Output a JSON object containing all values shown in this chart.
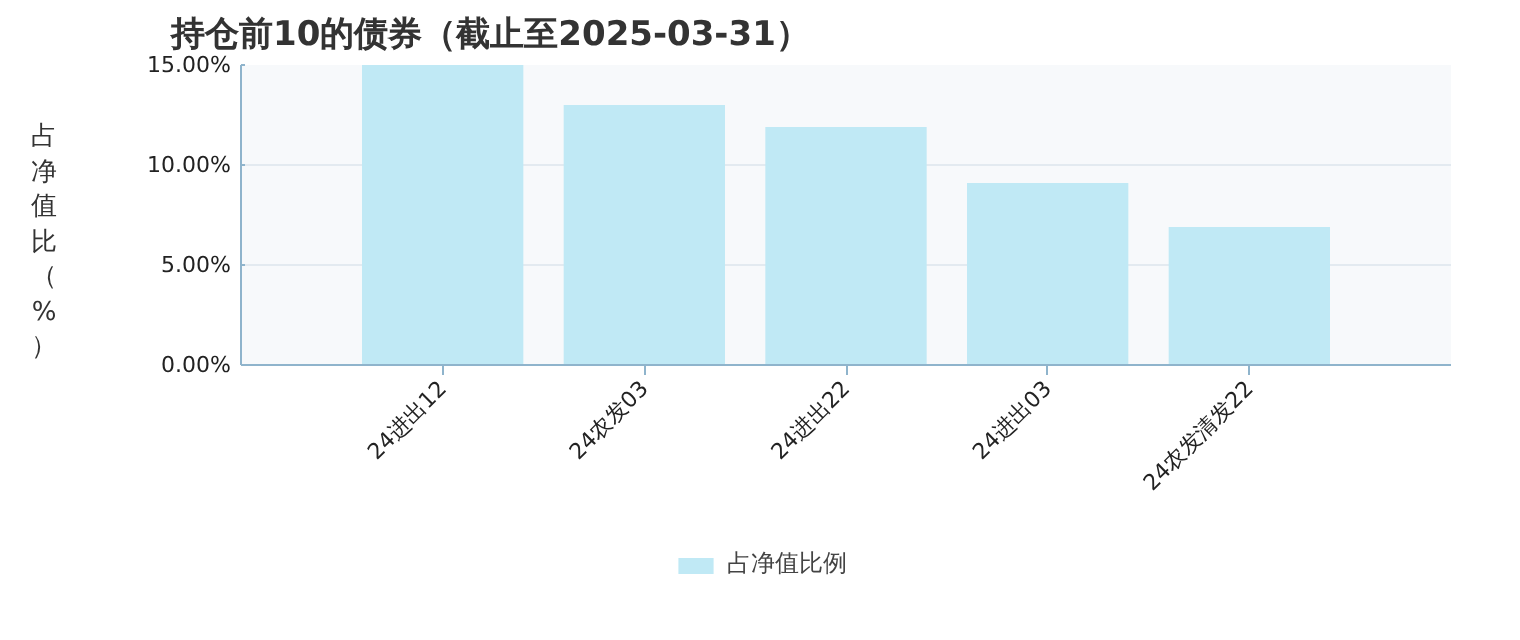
{
  "chart_data": {
    "type": "bar",
    "title": "持仓前10的债券（截止至2025-03-31）",
    "ylabel": "占净值比（%）",
    "categories": [
      "24进出12",
      "24农发03",
      "24进出22",
      "24进出03",
      "24农发清发22"
    ],
    "series": [
      {
        "name": "占净值比例",
        "color": "#c0e9f5",
        "values": [
          15.0,
          13.0,
          11.9,
          9.1,
          6.9
        ]
      }
    ],
    "ylim": [
      0,
      15
    ],
    "yticks": [
      {
        "value": 0,
        "label": "0.00%"
      },
      {
        "value": 5,
        "label": "5.00%"
      },
      {
        "value": 10,
        "label": "10.00%"
      },
      {
        "value": 15,
        "label": "15.00%"
      }
    ],
    "grid": "y",
    "legend": "bottom"
  }
}
